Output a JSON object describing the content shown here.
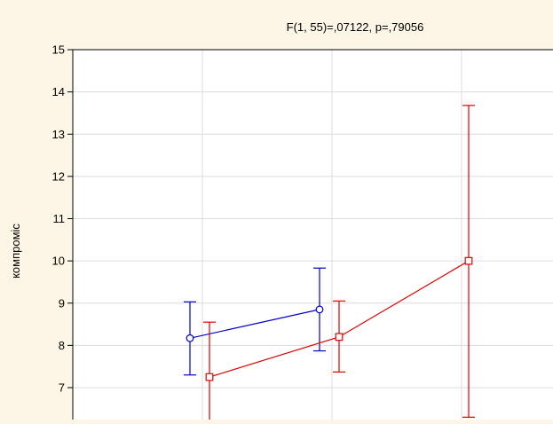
{
  "chart_data": {
    "type": "line",
    "title": "F(1, 55)=,07122, p=,79056",
    "xlabel": "",
    "ylabel": "компроміс",
    "x_categories": [
      "",
      "",
      ""
    ],
    "ylim": [
      6.1,
      15
    ],
    "yticks": [
      7,
      8,
      9,
      10,
      11,
      12,
      13,
      14,
      15
    ],
    "grid": true,
    "legend": "none",
    "series": [
      {
        "color": "#0000cc",
        "marker": "circle",
        "points": [
          {
            "x": 0,
            "y": 8.17,
            "lower": 7.3,
            "upper": 9.03
          },
          {
            "x": 1,
            "y": 8.85,
            "lower": 7.87,
            "upper": 9.83
          }
        ]
      },
      {
        "color": "#e00000",
        "marker": "square",
        "points": [
          {
            "x": 0,
            "y": 7.25,
            "lower": 5.9,
            "upper": 8.55
          },
          {
            "x": 1,
            "y": 8.2,
            "lower": 7.37,
            "upper": 9.05
          },
          {
            "x": 2,
            "y": 10.0,
            "lower": 6.3,
            "upper": 13.68
          }
        ]
      }
    ]
  }
}
